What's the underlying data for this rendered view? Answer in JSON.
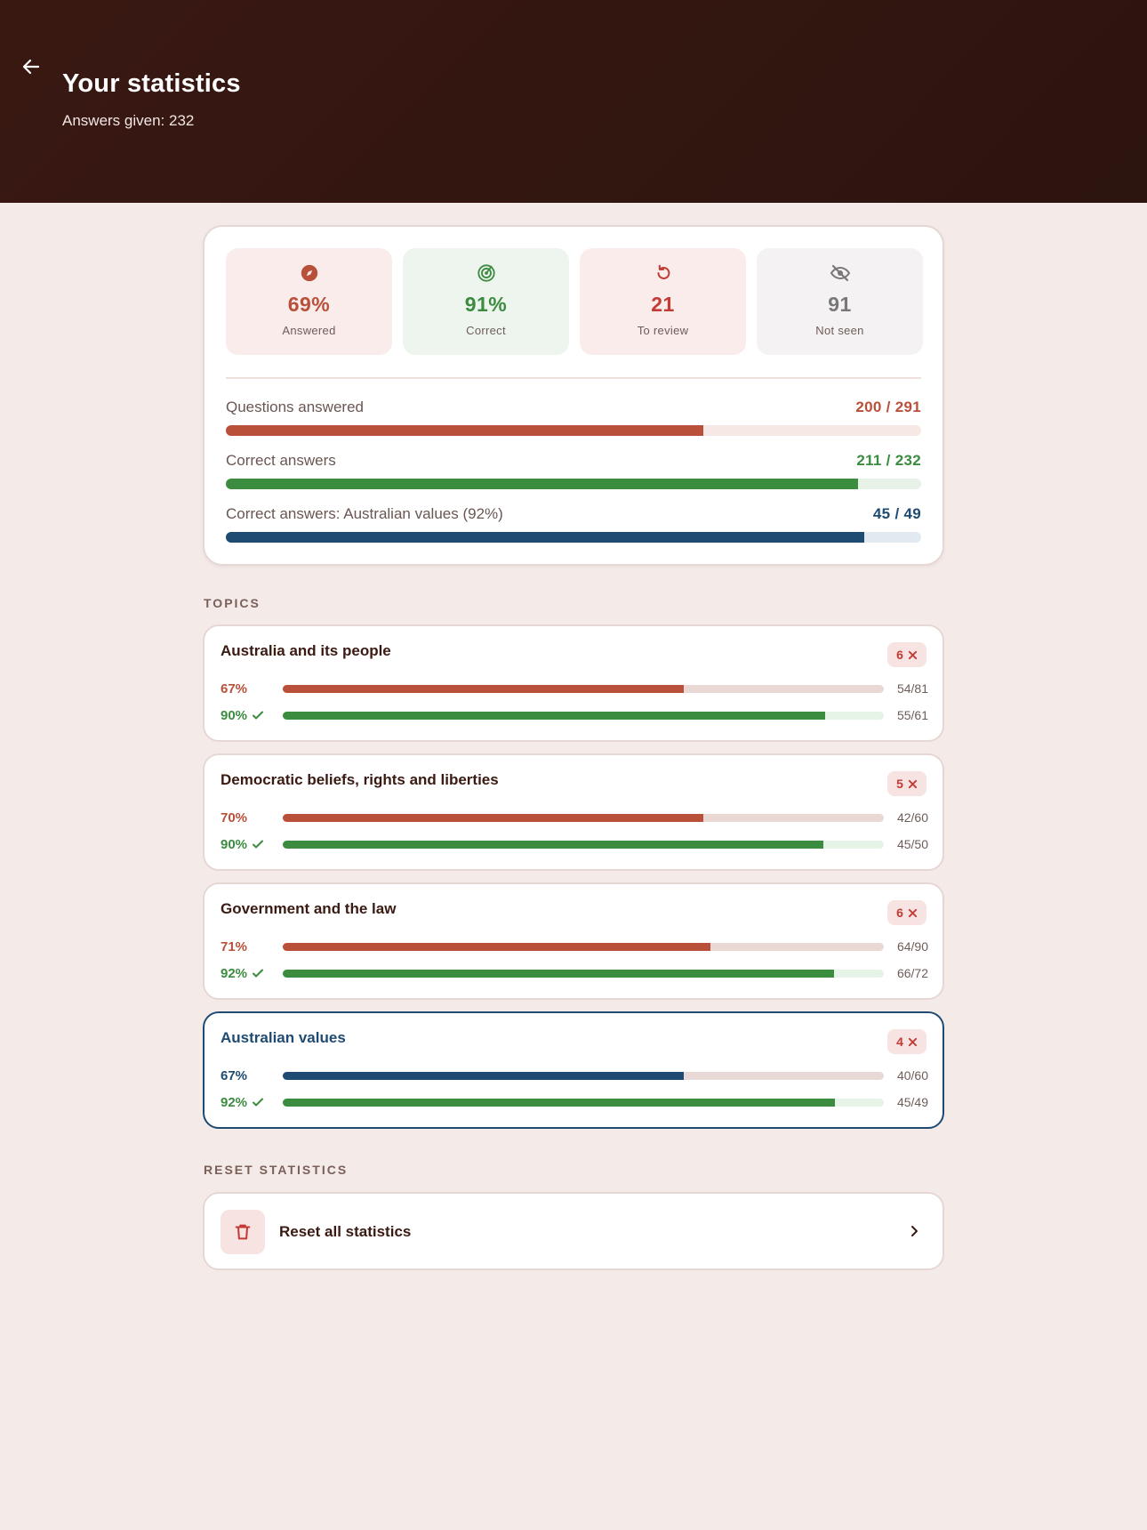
{
  "header": {
    "title": "Your statistics",
    "subtitle": "Answers given: 232",
    "back_icon": "arrow-left-icon"
  },
  "summary": {
    "tiles": [
      {
        "icon": "compass-icon",
        "value": "69%",
        "label": "Answered",
        "color": "#b8503a"
      },
      {
        "icon": "target-icon",
        "value": "91%",
        "label": "Correct",
        "color": "#3c8c40"
      },
      {
        "icon": "refresh-icon",
        "value": "21",
        "label": "To review",
        "color": "#c43a34"
      },
      {
        "icon": "eye-off-icon",
        "value": "91",
        "label": "Not seen",
        "color": "#787878"
      }
    ],
    "progress": [
      {
        "label": "Questions answered",
        "value": "200 / 291",
        "fraction": 0.687,
        "color": "#b8503a",
        "track": "#f6e8e5"
      },
      {
        "label": "Correct answers",
        "value": "211 / 232",
        "fraction": 0.909,
        "color": "#3c8c40",
        "track": "#e6f1e7"
      },
      {
        "label": "Correct answers: Australian values (92%)",
        "value": "45 / 49",
        "fraction": 0.918,
        "color": "#1f4a72",
        "track": "#e3e9f0"
      }
    ]
  },
  "topics_section": {
    "label": "TOPICS"
  },
  "topics": [
    {
      "title": "Australia and its people",
      "badge": "6",
      "selected": false,
      "answered": {
        "pct": "67%",
        "count": "54/81",
        "fraction": 0.667,
        "color": "#b8503a"
      },
      "correct": {
        "pct": "90%",
        "count": "55/61",
        "fraction": 0.902,
        "color": "#3c8c40"
      }
    },
    {
      "title": "Democratic beliefs, rights and liberties",
      "badge": "5",
      "selected": false,
      "answered": {
        "pct": "70%",
        "count": "42/60",
        "fraction": 0.7,
        "color": "#b8503a"
      },
      "correct": {
        "pct": "90%",
        "count": "45/50",
        "fraction": 0.9,
        "color": "#3c8c40"
      }
    },
    {
      "title": "Government and the law",
      "badge": "6",
      "selected": false,
      "answered": {
        "pct": "71%",
        "count": "64/90",
        "fraction": 0.711,
        "color": "#b8503a"
      },
      "correct": {
        "pct": "92%",
        "count": "66/72",
        "fraction": 0.917,
        "color": "#3c8c40"
      }
    },
    {
      "title": "Australian values",
      "badge": "4",
      "selected": true,
      "answered": {
        "pct": "67%",
        "count": "40/60",
        "fraction": 0.667,
        "color": "#1f4a72"
      },
      "correct": {
        "pct": "92%",
        "count": "45/49",
        "fraction": 0.918,
        "color": "#3c8c40"
      }
    }
  ],
  "reset_section": {
    "label": "RESET STATISTICS"
  },
  "reset": {
    "label": "Reset all statistics",
    "icon": "trash-icon",
    "chevron": "chevron-right-icon"
  }
}
